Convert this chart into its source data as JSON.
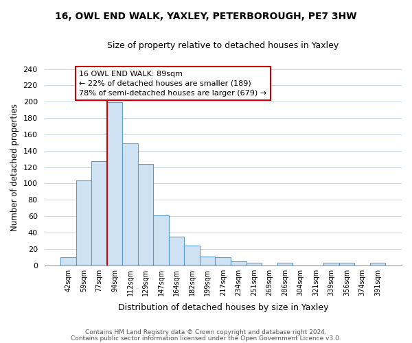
{
  "title": "16, OWL END WALK, YAXLEY, PETERBOROUGH, PE7 3HW",
  "subtitle": "Size of property relative to detached houses in Yaxley",
  "xlabel": "Distribution of detached houses by size in Yaxley",
  "ylabel": "Number of detached properties",
  "bin_labels": [
    "42sqm",
    "59sqm",
    "77sqm",
    "94sqm",
    "112sqm",
    "129sqm",
    "147sqm",
    "164sqm",
    "182sqm",
    "199sqm",
    "217sqm",
    "234sqm",
    "251sqm",
    "269sqm",
    "286sqm",
    "304sqm",
    "321sqm",
    "339sqm",
    "356sqm",
    "374sqm",
    "391sqm"
  ],
  "bar_heights": [
    10,
    104,
    127,
    199,
    149,
    124,
    61,
    35,
    24,
    11,
    10,
    5,
    3,
    0,
    3,
    0,
    0,
    3,
    3,
    0,
    3
  ],
  "bar_color": "#cfe2f3",
  "bar_edge_color": "#5b9bd5",
  "vline_x_index": 3,
  "vline_color": "#cc0000",
  "annotation_text": "16 OWL END WALK: 89sqm\n← 22% of detached houses are smaller (189)\n78% of semi-detached houses are larger (679) →",
  "annotation_box_color": "#ffffff",
  "annotation_box_edge": "#cc0000",
  "ylim": [
    0,
    240
  ],
  "yticks": [
    0,
    20,
    40,
    60,
    80,
    100,
    120,
    140,
    160,
    180,
    200,
    220,
    240
  ],
  "footer_line1": "Contains HM Land Registry data © Crown copyright and database right 2024.",
  "footer_line2": "Contains public sector information licensed under the Open Government Licence v3.0.",
  "bg_color": "#ffffff",
  "grid_color": "#c8d8e8"
}
